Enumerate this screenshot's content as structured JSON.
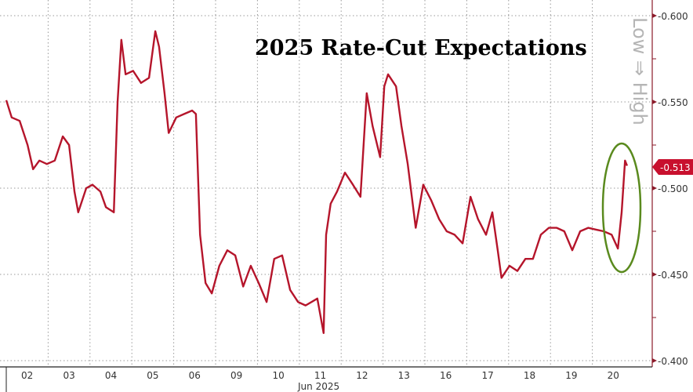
{
  "chart_data": {
    "type": "line",
    "title": "2025 Rate-Cut Expectations",
    "xlabel": "Jun 2025",
    "ylabel": "Low ⇒ High",
    "x_tick_labels": [
      "02",
      "03",
      "04",
      "05",
      "06",
      "09",
      "10",
      "11",
      "12",
      "13",
      "16",
      "17",
      "18",
      "19",
      "20"
    ],
    "y_ticks": [
      -0.6,
      -0.55,
      -0.5,
      -0.45,
      -0.4
    ],
    "y_tick_labels": [
      "-0.600",
      "-0.550",
      "-0.500",
      "-0.450",
      "-0.400"
    ],
    "ylim": [
      -0.4,
      -0.6
    ],
    "y_inverted": true,
    "grid": true,
    "last_value_label": "-0.513",
    "annotation": "green ellipse highlighting latest move on 20 Jun",
    "colors": {
      "line": "#b5152b",
      "highlight": "#5a8a1e",
      "axis": "#8b1a2a",
      "label_bg": "#c8102e"
    },
    "series": [
      {
        "name": "2025 Rate-Cut Expectations",
        "x_trading_days": [
          0,
          0.13,
          0.32,
          0.51,
          0.64,
          0.79,
          0.97,
          1.16,
          1.35,
          1.5,
          1.63,
          1.72,
          1.91,
          2.06,
          2.25,
          2.38,
          2.57,
          2.66,
          2.75,
          2.85,
          3.03,
          3.22,
          3.41,
          3.56,
          3.65,
          3.78,
          3.88,
          4.06,
          4.25,
          4.44,
          4.53,
          4.63,
          4.76,
          4.91,
          5.09,
          5.28,
          5.47,
          5.66,
          5.84,
          6.03,
          6.22,
          6.4,
          6.59,
          6.78,
          6.97,
          7.15,
          7.43,
          7.58,
          7.64,
          7.75,
          7.9,
          8.09,
          8.28,
          8.46,
          8.61,
          8.75,
          8.93,
          9.03,
          9.12,
          9.31,
          9.44,
          9.59,
          9.78,
          9.96,
          10.15,
          10.34,
          10.52,
          10.71,
          10.9,
          11.09,
          11.27,
          11.46,
          11.61,
          11.74,
          11.83,
          12.02,
          12.21,
          12.4,
          12.58,
          12.77,
          12.96,
          13.15,
          13.33,
          13.52,
          13.71,
          13.9,
          14.08,
          14.27,
          14.46,
          14.61,
          14.7,
          14.78,
          14.83
        ],
        "values": [
          -0.551,
          -0.541,
          -0.539,
          -0.525,
          -0.511,
          -0.516,
          -0.514,
          -0.516,
          -0.53,
          -0.525,
          -0.498,
          -0.486,
          -0.5,
          -0.502,
          -0.498,
          -0.489,
          -0.486,
          -0.55,
          -0.586,
          -0.566,
          -0.568,
          -0.561,
          -0.564,
          -0.591,
          -0.582,
          -0.555,
          -0.532,
          -0.541,
          -0.543,
          -0.545,
          -0.543,
          -0.473,
          -0.445,
          -0.439,
          -0.455,
          -0.464,
          -0.461,
          -0.443,
          -0.455,
          -0.445,
          -0.434,
          -0.459,
          -0.461,
          -0.441,
          -0.434,
          -0.432,
          -0.436,
          -0.416,
          -0.473,
          -0.491,
          -0.498,
          -0.509,
          -0.502,
          -0.495,
          -0.555,
          -0.536,
          -0.518,
          -0.559,
          -0.566,
          -0.559,
          -0.536,
          -0.514,
          -0.477,
          -0.502,
          -0.493,
          -0.482,
          -0.475,
          -0.473,
          -0.468,
          -0.495,
          -0.482,
          -0.473,
          -0.486,
          -0.464,
          -0.448,
          -0.455,
          -0.452,
          -0.459,
          -0.459,
          -0.473,
          -0.477,
          -0.477,
          -0.475,
          -0.464,
          -0.475,
          -0.477,
          -0.476,
          -0.475,
          -0.473,
          -0.465,
          -0.486,
          -0.516,
          -0.513
        ]
      }
    ]
  }
}
